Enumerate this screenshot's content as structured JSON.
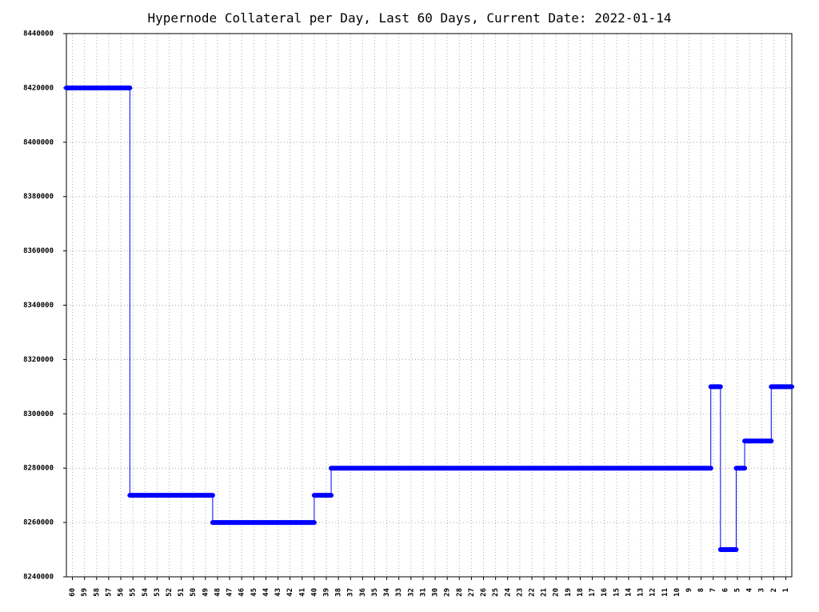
{
  "chart_data": {
    "type": "line",
    "title": "Hypernode Collateral per Day, Last 60 Days, Current Date: 2022-01-14",
    "xlim": [
      60.5,
      0.5
    ],
    "xticks": [
      60,
      59,
      58,
      57,
      56,
      55,
      54,
      53,
      52,
      51,
      50,
      49,
      48,
      47,
      46,
      45,
      44,
      43,
      42,
      41,
      40,
      39,
      38,
      37,
      36,
      35,
      34,
      33,
      32,
      31,
      30,
      29,
      28,
      27,
      26,
      25,
      24,
      23,
      22,
      21,
      20,
      19,
      18,
      17,
      16,
      15,
      14,
      13,
      12,
      11,
      10,
      9,
      8,
      7,
      6,
      5,
      4,
      3,
      2,
      1
    ],
    "ylim": [
      8240000,
      8440000
    ],
    "yticks": [
      8240000,
      8260000,
      8280000,
      8300000,
      8320000,
      8340000,
      8360000,
      8380000,
      8400000,
      8420000,
      8440000
    ],
    "grid": true,
    "series": [
      {
        "color": "#0000ff",
        "x": [
          60.5,
          55.25,
          55.25,
          48.4,
          48.4,
          40,
          40,
          38.6,
          38.6,
          7.2,
          7.2,
          6.4,
          6.4,
          5.1,
          5.1,
          4.4,
          4.4,
          2.2,
          2.2,
          0.5
        ],
        "values": [
          8420000,
          8420000,
          8270000,
          8270000,
          8260000,
          8260000,
          8270000,
          8270000,
          8280000,
          8280000,
          8310000,
          8310000,
          8250000,
          8250000,
          8280000,
          8280000,
          8290000,
          8290000,
          8310000,
          8310000
        ]
      }
    ]
  }
}
